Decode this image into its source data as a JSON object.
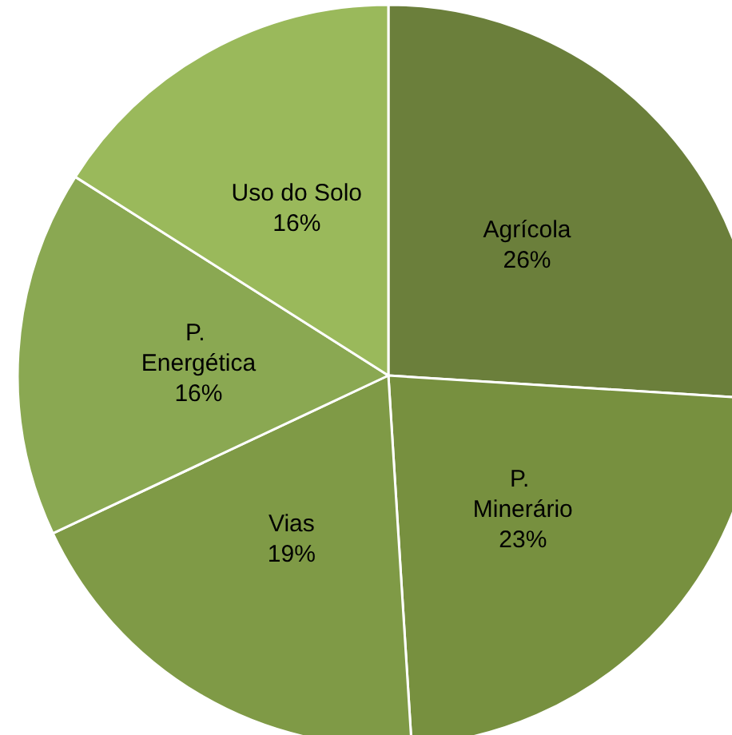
{
  "chart_data": {
    "type": "pie",
    "categories": [
      "Agrícola",
      "P. Minerário",
      "Vias",
      "P. Energética",
      "Uso do Solo"
    ],
    "values": [
      26,
      23,
      19,
      16,
      16
    ],
    "colors": [
      "#6b7f3b",
      "#77903f",
      "#7f9a46",
      "#8aa852",
      "#9ab95b"
    ],
    "value_labels": [
      "26%",
      "23%",
      "19%",
      "16%",
      "16%"
    ],
    "legend": false
  }
}
